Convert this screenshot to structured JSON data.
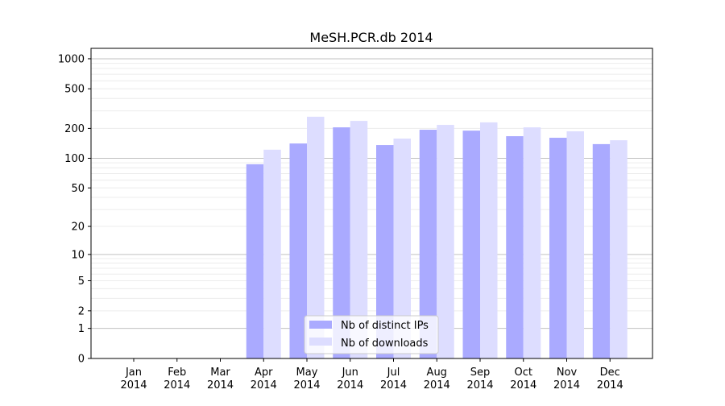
{
  "chart_data": {
    "type": "bar",
    "title": "MeSH.PCR.db 2014",
    "xlabel": "",
    "ylabel": "",
    "yscale": "log(1+y)",
    "ylim": [
      0,
      1270
    ],
    "yticks": [
      0,
      1,
      2,
      5,
      10,
      20,
      50,
      100,
      200,
      500,
      1000
    ],
    "ytick_labels": [
      "0",
      "1",
      "2",
      "5",
      "10",
      "20",
      "50",
      "100",
      "200",
      "500",
      "1000"
    ],
    "grid": true,
    "categories": [
      [
        "Jan",
        "2014"
      ],
      [
        "Feb",
        "2014"
      ],
      [
        "Mar",
        "2014"
      ],
      [
        "Apr",
        "2014"
      ],
      [
        "May",
        "2014"
      ],
      [
        "Jun",
        "2014"
      ],
      [
        "Jul",
        "2014"
      ],
      [
        "Aug",
        "2014"
      ],
      [
        "Sep",
        "2014"
      ],
      [
        "Oct",
        "2014"
      ],
      [
        "Nov",
        "2014"
      ],
      [
        "Dec",
        "2014"
      ]
    ],
    "series": [
      {
        "name": "Nb of distinct IPs",
        "color": "#aaaaff",
        "values": [
          0,
          0,
          0,
          87,
          141,
          205,
          136,
          194,
          190,
          167,
          161,
          139
        ]
      },
      {
        "name": "Nb of downloads",
        "color": "#ddddff",
        "values": [
          0,
          0,
          0,
          122,
          262,
          238,
          158,
          217,
          230,
          205,
          187,
          152
        ]
      }
    ],
    "legend_position": "bottom-center"
  }
}
